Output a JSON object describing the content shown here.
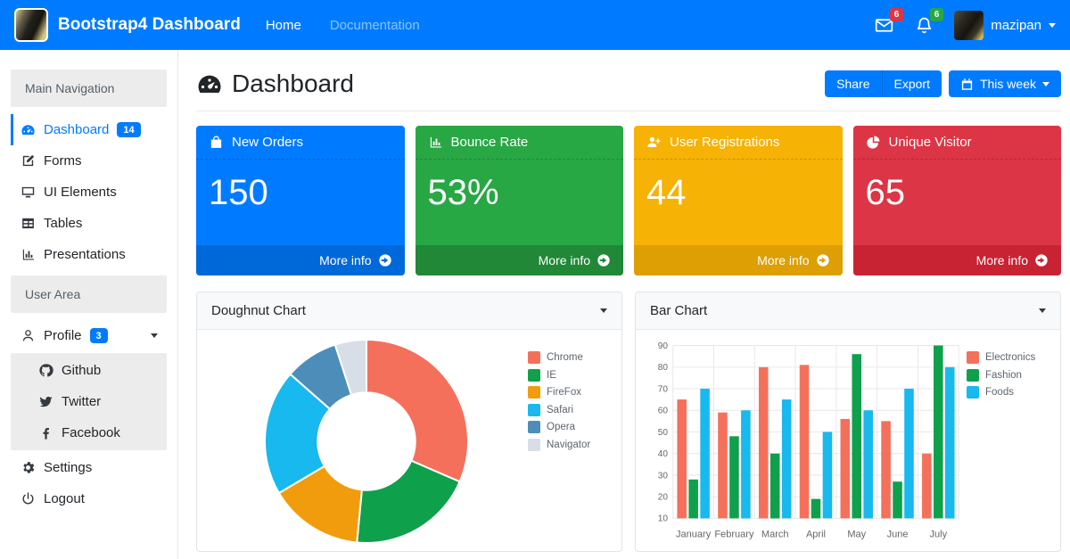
{
  "colors": {
    "primary": "#007bff",
    "sidebar_header_bg": "#ececec",
    "mail_badge_color": "#dc3545",
    "bell_badge_color": "#28a745"
  },
  "navbar": {
    "brand": "Bootstrap4 Dashboard",
    "links": [
      {
        "label": "Home",
        "active": true
      },
      {
        "label": "Documentation",
        "active": false
      }
    ],
    "mail_icon": "envelope",
    "mail_badge": "6",
    "bell_icon": "bell",
    "bell_badge": "6",
    "user_name": "mazipan"
  },
  "sidebar": {
    "sections": [
      {
        "header": "Main Navigation",
        "items": [
          {
            "label": "Dashboard",
            "icon": "gauge",
            "badge": "14",
            "active": true
          },
          {
            "label": "Forms",
            "icon": "pencil-square"
          },
          {
            "label": "UI Elements",
            "icon": "desktop"
          },
          {
            "label": "Tables",
            "icon": "table"
          },
          {
            "label": "Presentations",
            "icon": "chart-bar"
          }
        ]
      },
      {
        "header": "User Area",
        "items": [
          {
            "label": "Profile",
            "icon": "user",
            "badge": "3",
            "caret": true
          },
          {
            "label": "Github",
            "icon": "github",
            "sub": true
          },
          {
            "label": "Twitter",
            "icon": "twitter",
            "sub": true
          },
          {
            "label": "Facebook",
            "icon": "facebook",
            "sub": true
          },
          {
            "label": "Settings",
            "icon": "gear"
          },
          {
            "label": "Logout",
            "icon": "power"
          }
        ]
      }
    ]
  },
  "page": {
    "title": "Dashboard",
    "title_icon": "gauge",
    "share_label": "Share",
    "export_label": "Export",
    "period_label": "This week",
    "period_icon": "calendar",
    "more_info_label": "More info"
  },
  "stat_cards": [
    {
      "title": "New Orders",
      "icon": "shopping-bag",
      "value": "150",
      "bg": "#007bff",
      "footer_bg": "#0069d9"
    },
    {
      "title": "Bounce Rate",
      "icon": "chart-bar",
      "value": "53%",
      "bg": "#28a745",
      "footer_bg": "#218838"
    },
    {
      "title": "User Registrations",
      "icon": "user-plus",
      "value": "44",
      "bg": "#f6b205",
      "footer_bg": "#dd9f04"
    },
    {
      "title": "Unique Visitor",
      "icon": "pie-chart",
      "value": "65",
      "bg": "#dc3545",
      "footer_bg": "#c82333"
    }
  ],
  "chart_data": [
    {
      "type": "doughnut",
      "title": "Doughnut Chart",
      "labels": [
        "Chrome",
        "IE",
        "FireFox",
        "Safari",
        "Opera",
        "Navigator"
      ],
      "values": [
        31.5,
        20,
        15,
        20,
        8.5,
        5
      ],
      "colors": [
        "#f4705b",
        "#0fa04c",
        "#f19c0d",
        "#17b9ef",
        "#4c8db9",
        "#d8dee7"
      ],
      "hole": 0.48,
      "legend_position": "right"
    },
    {
      "type": "bar",
      "title": "Bar Chart",
      "categories": [
        "January",
        "February",
        "March",
        "April",
        "May",
        "June",
        "July"
      ],
      "series": [
        {
          "name": "Electronics",
          "color": "#f4705b",
          "values": [
            65,
            59,
            80,
            81,
            56,
            55,
            40
          ]
        },
        {
          "name": "Fashion",
          "color": "#0fa04c",
          "values": [
            28,
            48,
            40,
            19,
            86,
            27,
            90
          ]
        },
        {
          "name": "Foods",
          "color": "#17b9ef",
          "values": [
            70,
            60,
            65,
            50,
            60,
            70,
            80
          ]
        }
      ],
      "ylim": [
        10,
        90
      ],
      "ytick_step": 10,
      "grid": true,
      "legend_position": "top-right"
    }
  ]
}
